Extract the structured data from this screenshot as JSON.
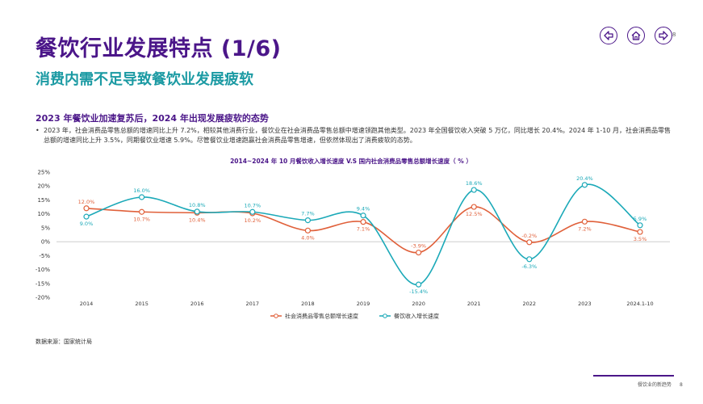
{
  "page": {
    "title": "餐饮行业发展特点 (1/6)",
    "subtitle": "消费内需不足导致餐饮业发展疲软",
    "section_heading": "2023 年餐饮业加速复苏后，2024 年出现发展疲软的态势",
    "bullet": "2023 年，社会消费品零售总额的增速同比上升 7.2%，相较其他消费行业，餐饮业在社会消费品零售总额中增速领跑其他类型。2023 年全国餐饮收入突破 5 万亿，同比增长 20.4%。2024 年 1-10 月，社会消费品零售总额的增速同比上升 3.5%，同期餐饮业增速 5.9%。尽管餐饮业增速跑赢社会消费品零售增速，但依然体现出了消费疲软的态势。",
    "source": "数据来源：国家统计局",
    "page_number": "8",
    "footer_text": "餐饮业的新趋势",
    "nav": {
      "prev": "prev-arrow-icon",
      "home": "home-icon",
      "next": "next-arrow-icon"
    }
  },
  "colors": {
    "brand": "#4b1689",
    "accent": "#1b9aa3",
    "series_retail": "#e0603a",
    "series_catering": "#1ba9b8"
  },
  "chart_data": {
    "type": "line",
    "title": "2014~2024 年 10 月餐饮收入增长速度 V.S 国内社会消费品零售总额增长速度（ % ）",
    "categories": [
      "2014",
      "2015",
      "2016",
      "2017",
      "2018",
      "2019",
      "2020",
      "2021",
      "2022",
      "2023",
      "2024.1-10"
    ],
    "ylim": [
      -20,
      25
    ],
    "yticks": [
      25,
      20,
      15,
      10,
      5,
      0,
      -5,
      -10,
      -15,
      -20
    ],
    "ytick_labels": [
      "25%",
      "20%",
      "15%",
      "10%",
      "5%",
      "0%",
      "-5%",
      "-10%",
      "-15%",
      "-20%"
    ],
    "series": [
      {
        "name": "社会消费品零售总额增长速度",
        "color": "#e0603a",
        "values": [
          12.0,
          10.7,
          10.4,
          10.2,
          4.0,
          7.1,
          -3.9,
          12.5,
          -0.2,
          7.2,
          3.5
        ],
        "labels": [
          "12.0%",
          "10.7%",
          "10.4%",
          "10.2%",
          "4.0%",
          "7.1%",
          "-3.9%",
          "12.5%",
          "-0.2%",
          "7.2%",
          "3.5%"
        ]
      },
      {
        "name": "餐饮收入增长速度",
        "color": "#1ba9b8",
        "values": [
          9.0,
          16.0,
          10.8,
          10.7,
          7.7,
          9.4,
          -15.4,
          18.6,
          -6.3,
          20.4,
          5.9
        ],
        "labels": [
          "9.0%",
          "16.0%",
          "10.8%",
          "10.7%",
          "7.7%",
          "9.4%",
          "-15.4%",
          "18.6%",
          "-6.3%",
          "20.4%",
          "5.9%"
        ]
      }
    ]
  }
}
